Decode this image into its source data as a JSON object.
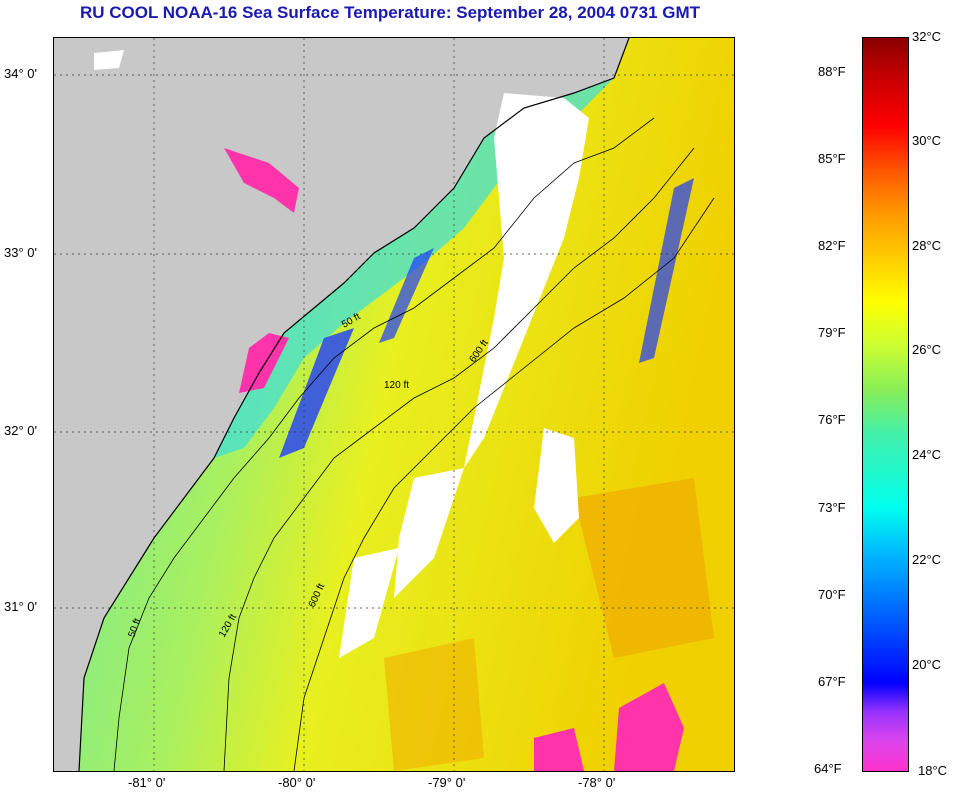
{
  "title": "RU COOL  NOAA-16  Sea Surface Temperature:  September 28, 2004 0731 GMT",
  "map": {
    "lat_labels": [
      "34° 0'",
      "33° 0'",
      "32° 0'",
      "31° 0'"
    ],
    "lat_values": [
      34,
      33,
      32,
      31
    ],
    "lon_labels": [
      "-81° 0'",
      "-80° 0'",
      "-79° 0'",
      "-78° 0'"
    ],
    "lon_values": [
      -81,
      -80,
      -79,
      -78
    ],
    "contour_labels": [
      "50 ft",
      "120 ft",
      "600 ft"
    ],
    "land_color": "#c8c8c8",
    "cloud_color": "#ffffff"
  },
  "colorbar": {
    "fahrenheit_labels": [
      "88°F",
      "85°F",
      "82°F",
      "79°F",
      "76°F",
      "73°F",
      "70°F",
      "67°F",
      "64°F"
    ],
    "celsius_labels": [
      "32°C",
      "30°C",
      "28°C",
      "26°C",
      "24°C",
      "22°C",
      "20°C",
      "18°C"
    ],
    "range_celsius": [
      18,
      32
    ]
  }
}
